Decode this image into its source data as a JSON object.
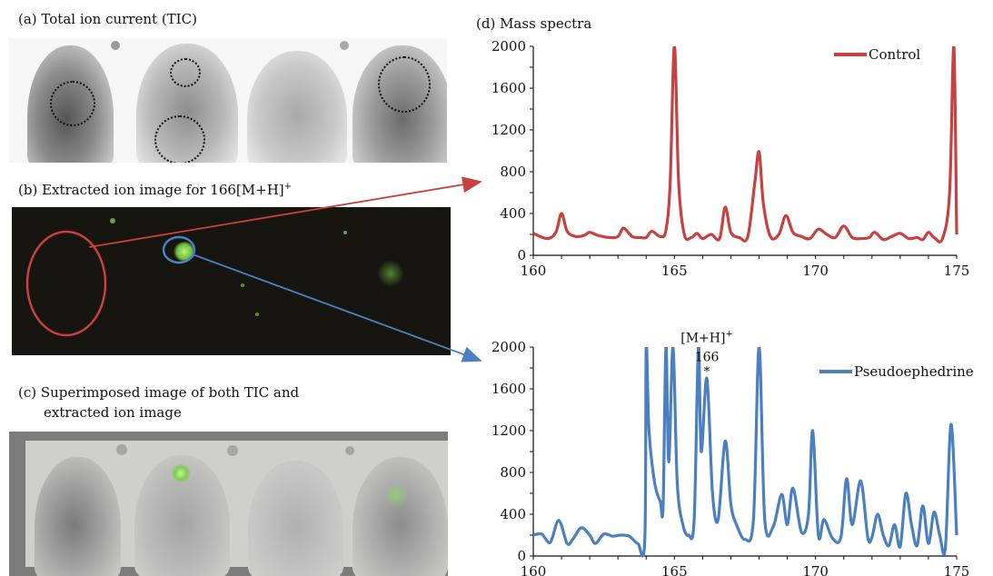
{
  "captions": {
    "a": "(a) Total ion current (TIC)",
    "b_prefix": "(b) Extracted ion image for 166[M+H]",
    "b_sup": "+",
    "c_line1": "(c) Superimposed image of both TIC and",
    "c_line2": "extracted ion image",
    "d": "(d) Mass spectra"
  },
  "colors": {
    "control": "#c8403f",
    "pseudo": "#4a7fc1",
    "green_spot": "#9be36a"
  },
  "chart_data": [
    {
      "type": "line",
      "title": "(d) Mass spectra",
      "xlim": [
        160,
        175
      ],
      "ylim": [
        0,
        2000
      ],
      "xticks": [
        160,
        165,
        170,
        175
      ],
      "yticks": [
        0,
        400,
        800,
        1200,
        1600,
        2000
      ],
      "legend": "top-right",
      "series": [
        {
          "name": "Control",
          "color": "#c8403f",
          "x": [
            160,
            160.5,
            160.8,
            161.0,
            161.2,
            161.5,
            161.8,
            162.0,
            162.3,
            162.7,
            163.0,
            163.2,
            163.5,
            163.8,
            164.0,
            164.2,
            164.5,
            164.7,
            164.85,
            165.0,
            165.15,
            165.35,
            165.6,
            165.8,
            166.0,
            166.3,
            166.6,
            166.8,
            167.0,
            167.3,
            167.6,
            167.85,
            168.0,
            168.15,
            168.4,
            168.7,
            168.95,
            169.2,
            169.5,
            169.8,
            170.1,
            170.4,
            170.7,
            171.0,
            171.3,
            171.6,
            171.9,
            172.1,
            172.4,
            172.7,
            173.0,
            173.3,
            173.6,
            173.8,
            174.0,
            174.2,
            174.5,
            174.75,
            174.9,
            175.0
          ],
          "y": [
            210,
            160,
            220,
            400,
            230,
            180,
            190,
            220,
            190,
            170,
            180,
            260,
            180,
            170,
            170,
            230,
            180,
            240,
            700,
            2000,
            700,
            200,
            170,
            210,
            160,
            200,
            160,
            460,
            220,
            170,
            180,
            700,
            990,
            500,
            180,
            200,
            380,
            220,
            180,
            160,
            250,
            200,
            170,
            280,
            170,
            160,
            170,
            220,
            150,
            180,
            210,
            160,
            170,
            150,
            220,
            170,
            160,
            600,
            2000,
            200
          ]
        }
      ]
    },
    {
      "type": "line",
      "xlim": [
        160,
        175
      ],
      "ylim": [
        0,
        2000
      ],
      "xticks": [
        160,
        165,
        170,
        175
      ],
      "yticks": [
        0,
        400,
        800,
        1200,
        1600,
        2000
      ],
      "legend": "top-right",
      "annotations": [
        {
          "x": 166.15,
          "y": 1700,
          "lines": [
            "[M+H]+",
            "166",
            "*"
          ]
        }
      ],
      "series": [
        {
          "name": "Pseudoephedrine",
          "color": "#4a7fc1",
          "x": [
            160,
            160.3,
            160.6,
            160.9,
            161.2,
            161.4,
            161.7,
            162.0,
            162.2,
            162.5,
            162.8,
            163.1,
            163.4,
            163.7,
            163.95,
            164.0,
            164.1,
            164.3,
            164.5,
            164.6,
            164.7,
            164.8,
            164.95,
            165.1,
            165.3,
            165.5,
            165.7,
            165.85,
            165.95,
            166.15,
            166.35,
            166.55,
            166.8,
            167.0,
            167.2,
            167.5,
            167.8,
            168.0,
            168.2,
            168.5,
            168.8,
            169.0,
            169.2,
            169.5,
            169.75,
            169.9,
            170.1,
            170.3,
            170.6,
            170.9,
            171.1,
            171.3,
            171.6,
            171.85,
            172.0,
            172.2,
            172.4,
            172.6,
            172.8,
            173.0,
            173.2,
            173.4,
            173.6,
            173.8,
            174.0,
            174.2,
            174.4,
            174.6,
            174.8,
            175.0
          ],
          "y": [
            200,
            210,
            130,
            340,
            120,
            160,
            270,
            200,
            120,
            210,
            190,
            200,
            190,
            120,
            150,
            2000,
            1200,
            700,
            520,
            480,
            2000,
            900,
            2000,
            700,
            300,
            200,
            350,
            2000,
            1000,
            1700,
            600,
            350,
            1100,
            500,
            300,
            160,
            350,
            2000,
            350,
            280,
            590,
            300,
            650,
            230,
            400,
            1200,
            200,
            350,
            170,
            180,
            740,
            300,
            720,
            180,
            180,
            400,
            200,
            100,
            300,
            90,
            600,
            300,
            100,
            480,
            120,
            420,
            200,
            80,
            1260,
            200
          ]
        }
      ]
    }
  ]
}
